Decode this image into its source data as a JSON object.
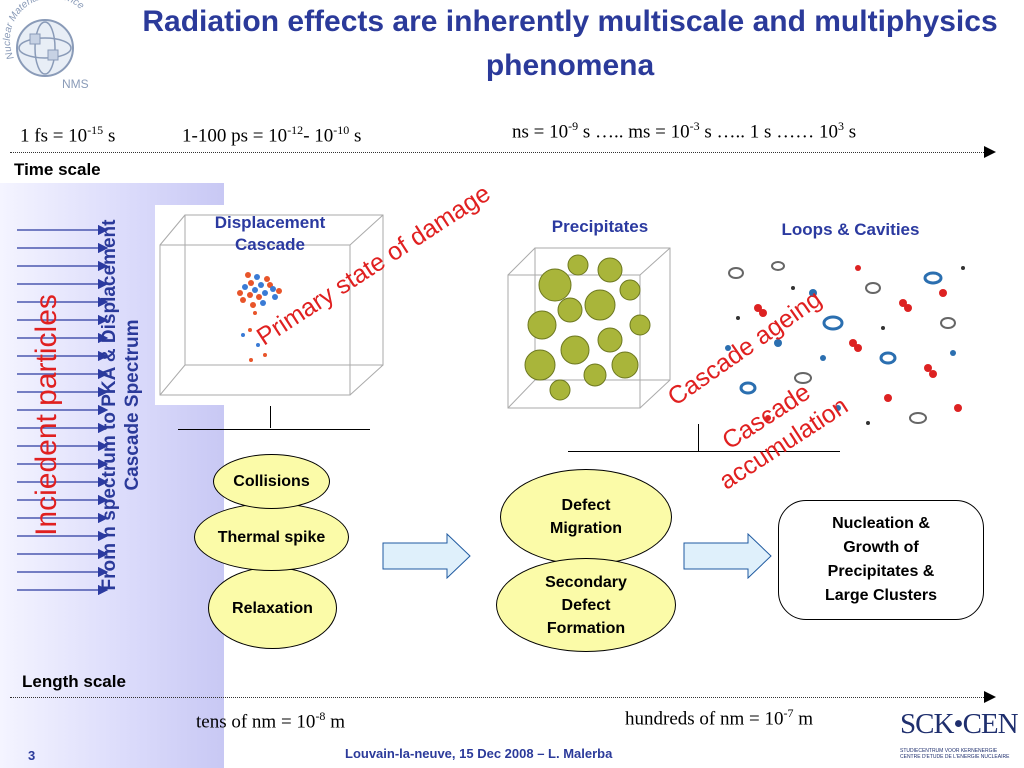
{
  "title": "Radiation effects are inherently multiscale and multiphysics phenomena",
  "logo": {
    "text": "Nuclear Materials Science",
    "abbr": "NMS"
  },
  "time_axis": {
    "label": "Time scale",
    "fs": {
      "pre": "1 fs = 10",
      "exp": "-15",
      "post": " s"
    },
    "ps": {
      "pre": "1-100 ps = 10",
      "exp1": "-12",
      "mid": "- 10",
      "exp2": "-10",
      "post": " s"
    },
    "ns": {
      "p1": "ns = 10",
      "e1": "-9",
      "p2": " s ….. ms = 10",
      "e2": "-3",
      "p3": " s ….. 1 s …… 10",
      "e3": "3",
      "p4": " s"
    }
  },
  "length_axis": {
    "label": "Length scale",
    "tens": {
      "pre": "tens of nm = 10",
      "exp": "-8",
      "post": " m"
    },
    "hundreds": {
      "pre": "hundreds of nm = 10",
      "exp": "-7",
      "post": " m"
    }
  },
  "side": {
    "vertical_blue": "From n spectrum to PKA & Displacement Cascade Spectrum",
    "vertical_red": "Inciedent particles"
  },
  "cubes": {
    "displacement": "Displacement Cascade",
    "precipitates": "Precipitates",
    "loops": "Loops & Cavities"
  },
  "annotations": {
    "primary": "Primary state of damage",
    "ageing": "Cascade ageing",
    "accumulation": "Cascade accumulation"
  },
  "stage1": {
    "collisions": "Collisions",
    "thermal": "Thermal spike",
    "relaxation": "Relaxation"
  },
  "stage2": {
    "defect_migration": "Defect Migration",
    "secondary": "Secondary Defect Formation"
  },
  "stage3": {
    "nucleation": "Nucleation & Growth of Precipitates & Large Clusters"
  },
  "footer": {
    "page": "3",
    "credit": "Louvain-la-neuve, 15 Dec 2008 – L. Malerba",
    "sck_logo": "SCK•CEN",
    "sck_sub1": "STUDIECENTRUM VOOR KERNENERGIE",
    "sck_sub2": "CENTRE D'ETUDE DE L'ENERGIE NUCLEAIRE"
  },
  "colors": {
    "title": "#2b3a9a",
    "red": "#e02020",
    "ellipse": "#fbfba8",
    "arrow": "#dff0fb"
  }
}
